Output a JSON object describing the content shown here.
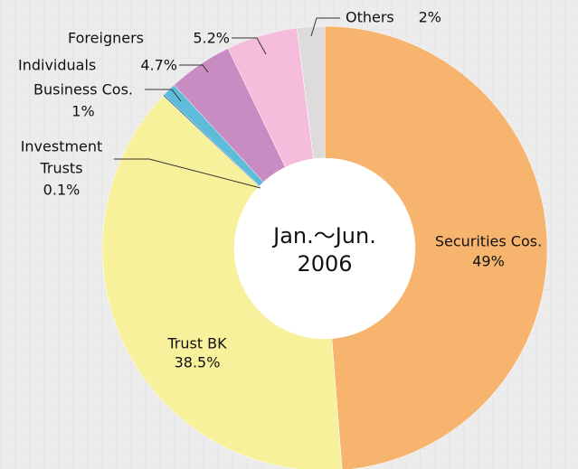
{
  "chart_data": {
    "type": "donut",
    "center_label": [
      "Jan.～Jun.",
      "2006"
    ],
    "labels": [
      "Securities Cos.",
      "Trust BK",
      [
        "Investment",
        "Trusts"
      ],
      "Business Cos.",
      "Individuals",
      "Foreigners",
      "Others"
    ],
    "values": [
      49,
      38.5,
      0.1,
      1,
      4.7,
      5.2,
      2
    ],
    "value_labels": [
      "49%",
      "38.5%",
      "0.1%",
      "1%",
      "4.7%",
      "5.2%",
      "2%"
    ],
    "colors": [
      "#f6b46e",
      "#f8f19c",
      "#2d6a9e",
      "#5cbcd9",
      "#c98cc2",
      "#f5bddb",
      "#dddbdb"
    ]
  }
}
